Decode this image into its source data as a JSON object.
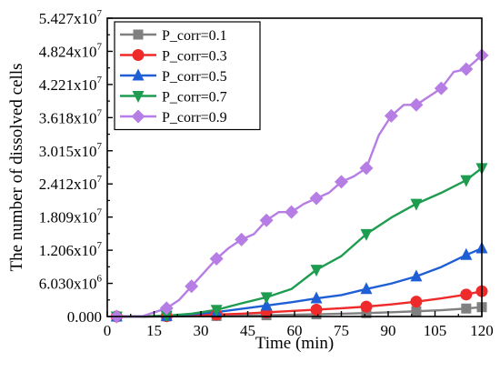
{
  "chart_data": {
    "type": "line",
    "xlabel": "Time (min)",
    "ylabel": "The number of dissolved cells",
    "xlim": [
      0,
      120
    ],
    "ylim": [
      0,
      54270000
    ],
    "x_ticks": [
      0,
      15,
      30,
      45,
      60,
      75,
      90,
      105,
      120
    ],
    "y_ticks": [
      {
        "value": 0,
        "base": "0.000",
        "exp": ""
      },
      {
        "value": 6030000,
        "base": "6.030x10",
        "exp": "6"
      },
      {
        "value": 12060000,
        "base": "1.206x10",
        "exp": "7"
      },
      {
        "value": 18090000,
        "base": "1.809x10",
        "exp": "7"
      },
      {
        "value": 24120000,
        "base": "2.412x10",
        "exp": "7"
      },
      {
        "value": 30150000,
        "base": "3.015x10",
        "exp": "7"
      },
      {
        "value": 36180000,
        "base": "3.618x10",
        "exp": "7"
      },
      {
        "value": 42210000,
        "base": "4.221x10",
        "exp": "7"
      },
      {
        "value": 48240000,
        "base": "4.824x10",
        "exp": "7"
      },
      {
        "value": 54270000,
        "base": "5.427x10",
        "exp": "7"
      }
    ],
    "grid": false,
    "legend_position": "top-left",
    "series": [
      {
        "name": "P_corr=0.1",
        "color": "#808080",
        "marker": "square",
        "x": [
          3,
          11,
          19,
          27,
          35,
          43,
          51,
          59,
          67,
          75,
          83,
          91,
          99,
          107,
          115,
          120
        ],
        "y": [
          0,
          0,
          20000,
          60000,
          100000,
          150000,
          230000,
          320000,
          400000,
          500000,
          620000,
          780000,
          950000,
          1150000,
          1450000,
          1700000
        ]
      },
      {
        "name": "P_corr=0.3",
        "color": "#ee2a2a",
        "marker": "circle",
        "x": [
          3,
          11,
          19,
          27,
          35,
          43,
          51,
          59,
          67,
          75,
          83,
          91,
          99,
          107,
          115,
          120
        ],
        "y": [
          0,
          0,
          60000,
          200000,
          350000,
          500000,
          750000,
          1000000,
          1250000,
          1500000,
          1800000,
          2200000,
          2700000,
          3300000,
          4000000,
          4600000
        ]
      },
      {
        "name": "P_corr=0.5",
        "color": "#1f5fd6",
        "marker": "triangle-up",
        "x": [
          3,
          11,
          19,
          27,
          35,
          43,
          51,
          59,
          67,
          75,
          83,
          91,
          99,
          107,
          115,
          120
        ],
        "y": [
          0,
          0,
          100000,
          400000,
          800000,
          1400000,
          2000000,
          2600000,
          3300000,
          3900000,
          5000000,
          6000000,
          7300000,
          9000000,
          11200000,
          12400000
        ]
      },
      {
        "name": "P_corr=0.7",
        "color": "#1e9c50",
        "marker": "triangle-down",
        "x": [
          3,
          11,
          19,
          27,
          35,
          43,
          51,
          59,
          67,
          75,
          83,
          91,
          99,
          107,
          115,
          120
        ],
        "y": [
          0,
          0,
          150000,
          500000,
          1200000,
          2400000,
          3500000,
          5000000,
          8500000,
          11000000,
          15000000,
          18000000,
          20500000,
          22500000,
          24800000,
          27000000
        ]
      },
      {
        "name": "P_corr=0.9",
        "color": "#b67ee4",
        "marker": "diamond",
        "x": [
          3,
          11,
          19,
          23,
          27,
          31,
          35,
          39,
          43,
          47,
          51,
          55,
          59,
          63,
          67,
          71,
          75,
          79,
          83,
          87,
          91,
          95,
          99,
          103,
          107,
          111,
          115,
          120
        ],
        "y": [
          0,
          0,
          1500000,
          3000000,
          5500000,
          8000000,
          10500000,
          12500000,
          14000000,
          15000000,
          17500000,
          19000000,
          19000000,
          20500000,
          21500000,
          22500000,
          24500000,
          25500000,
          27000000,
          33000000,
          36500000,
          38500000,
          38500000,
          40000000,
          41500000,
          44500000,
          45000000,
          47500000
        ]
      }
    ]
  }
}
